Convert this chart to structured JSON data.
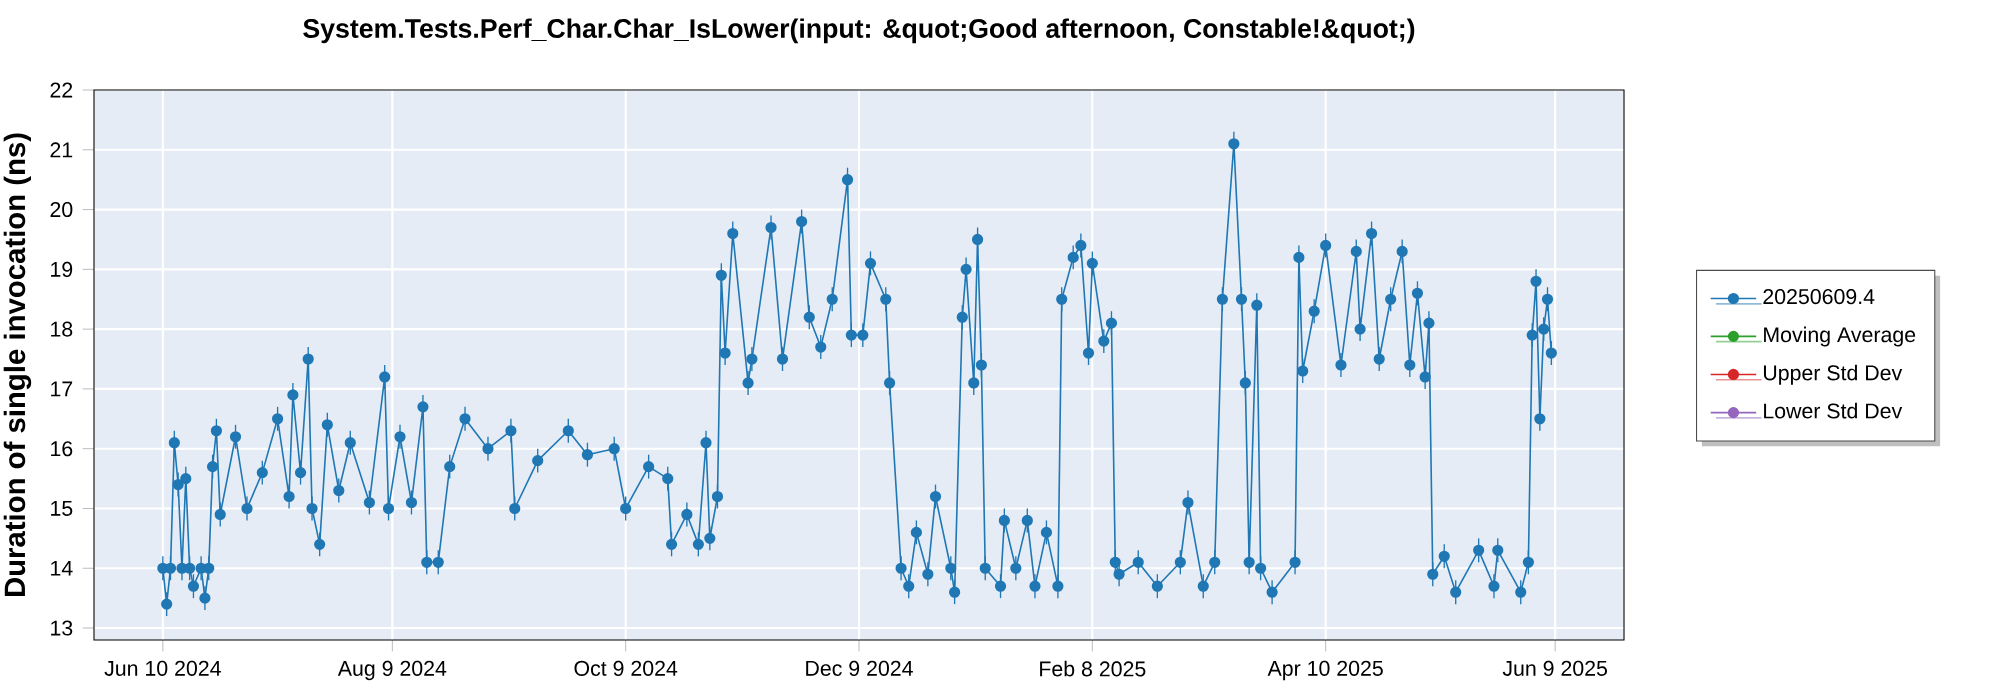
{
  "chart_data": {
    "type": "line",
    "title": "System.Tests.Perf_Char.Char_IsLower(input: &quot;Good afternoon, Constable!&quot;)",
    "ylabel": "Duration of single invocation (ns)",
    "xlim": [
      "2024-05-23",
      "2025-06-27"
    ],
    "xticks": [
      {
        "value": "2024-06-10",
        "label": "Jun 10 2024"
      },
      {
        "value": "2024-08-09",
        "label": "Aug 9 2024"
      },
      {
        "value": "2024-10-09",
        "label": "Oct 9 2024"
      },
      {
        "value": "2024-12-09",
        "label": "Dec 9 2024"
      },
      {
        "value": "2025-02-08",
        "label": "Feb 8 2025"
      },
      {
        "value": "2025-04-10",
        "label": "Apr 10 2025"
      },
      {
        "value": "2025-06-09",
        "label": "Jun 9 2025"
      }
    ],
    "ylim": [
      12.8,
      22
    ],
    "yticks": [
      13,
      14,
      15,
      16,
      17,
      18,
      19,
      20,
      21,
      22
    ],
    "grid": true,
    "legend": "right",
    "marker": "circle",
    "line_style": "solid",
    "series": [
      {
        "name": "20250609.4",
        "color": "#1f77b4",
        "x": [
          "2024-06-10",
          "2024-06-11",
          "2024-06-12",
          "2024-06-13",
          "2024-06-14",
          "2024-06-15",
          "2024-06-16",
          "2024-06-17",
          "2024-06-18",
          "2024-06-20",
          "2024-06-21",
          "2024-06-22",
          "2024-06-23",
          "2024-06-24",
          "2024-06-25",
          "2024-06-29",
          "2024-07-02",
          "2024-07-06",
          "2024-07-10",
          "2024-07-13",
          "2024-07-14",
          "2024-07-16",
          "2024-07-18",
          "2024-07-19",
          "2024-07-21",
          "2024-07-23",
          "2024-07-26",
          "2024-07-29",
          "2024-08-03",
          "2024-08-07",
          "2024-08-08",
          "2024-08-11",
          "2024-08-14",
          "2024-08-17",
          "2024-08-18",
          "2024-08-21",
          "2024-08-24",
          "2024-08-28",
          "2024-09-03",
          "2024-09-09",
          "2024-09-10",
          "2024-09-16",
          "2024-09-24",
          "2024-09-29",
          "2024-10-06",
          "2024-10-09",
          "2024-10-15",
          "2024-10-20",
          "2024-10-21",
          "2024-10-25",
          "2024-10-28",
          "2024-10-30",
          "2024-10-31",
          "2024-11-02",
          "2024-11-03",
          "2024-11-04",
          "2024-11-06",
          "2024-11-10",
          "2024-11-11",
          "2024-11-16",
          "2024-11-19",
          "2024-11-24",
          "2024-11-26",
          "2024-11-29",
          "2024-12-02",
          "2024-12-06",
          "2024-12-07",
          "2024-12-10",
          "2024-12-12",
          "2024-12-16",
          "2024-12-17",
          "2024-12-20",
          "2024-12-22",
          "2024-12-24",
          "2024-12-27",
          "2024-12-29",
          "2025-01-02",
          "2025-01-03",
          "2025-01-05",
          "2025-01-06",
          "2025-01-08",
          "2025-01-09",
          "2025-01-10",
          "2025-01-11",
          "2025-01-15",
          "2025-01-16",
          "2025-01-19",
          "2025-01-22",
          "2025-01-24",
          "2025-01-27",
          "2025-01-30",
          "2025-01-31",
          "2025-02-03",
          "2025-02-05",
          "2025-02-07",
          "2025-02-08",
          "2025-02-11",
          "2025-02-13",
          "2025-02-14",
          "2025-02-15",
          "2025-02-20",
          "2025-02-25",
          "2025-03-03",
          "2025-03-05",
          "2025-03-09",
          "2025-03-12",
          "2025-03-14",
          "2025-03-17",
          "2025-03-19",
          "2025-03-20",
          "2025-03-21",
          "2025-03-23",
          "2025-03-24",
          "2025-03-27",
          "2025-04-02",
          "2025-04-03",
          "2025-04-04",
          "2025-04-07",
          "2025-04-10",
          "2025-04-14",
          "2025-04-18",
          "2025-04-19",
          "2025-04-22",
          "2025-04-24",
          "2025-04-27",
          "2025-04-30",
          "2025-05-02",
          "2025-05-04",
          "2025-05-06",
          "2025-05-07",
          "2025-05-08",
          "2025-05-11",
          "2025-05-14",
          "2025-05-20",
          "2025-05-24",
          "2025-05-25",
          "2025-05-31",
          "2025-06-02",
          "2025-06-03",
          "2025-06-04",
          "2025-06-05",
          "2025-06-06",
          "2025-06-07",
          "2025-06-08"
        ],
        "values": [
          14.0,
          13.4,
          14.0,
          16.1,
          15.4,
          14.0,
          15.5,
          14.0,
          13.7,
          14.0,
          13.5,
          14.0,
          15.7,
          16.3,
          14.9,
          16.2,
          15.0,
          15.6,
          16.5,
          15.2,
          16.9,
          15.6,
          17.5,
          15.0,
          14.4,
          16.4,
          15.3,
          16.1,
          15.1,
          17.2,
          15.0,
          16.2,
          15.1,
          16.7,
          14.1,
          14.1,
          15.7,
          16.5,
          16.0,
          16.3,
          15.0,
          15.8,
          16.3,
          15.9,
          16.0,
          15.0,
          15.7,
          15.5,
          14.4,
          14.9,
          14.4,
          16.1,
          14.5,
          15.2,
          18.9,
          17.6,
          19.6,
          17.1,
          17.5,
          19.7,
          17.5,
          19.8,
          18.2,
          17.7,
          18.5,
          20.5,
          17.9,
          17.9,
          19.1,
          18.5,
          17.1,
          14.0,
          13.7,
          14.6,
          13.9,
          15.2,
          14.0,
          13.6,
          18.2,
          19.0,
          17.1,
          19.5,
          17.4,
          14.0,
          13.7,
          14.8,
          14.0,
          14.8,
          13.7,
          14.6,
          13.7,
          18.5,
          19.2,
          19.4,
          17.6,
          19.1,
          17.8,
          18.1,
          14.1,
          13.9,
          14.1,
          13.7,
          14.1,
          15.1,
          13.7,
          14.1,
          18.5,
          21.1,
          18.5,
          17.1,
          14.1,
          18.4,
          14.0,
          13.6,
          14.1,
          19.2,
          17.3,
          18.3,
          19.4,
          17.4,
          19.3,
          18.0,
          19.6,
          17.5,
          18.5,
          19.3,
          17.4,
          18.6,
          17.2,
          18.1,
          13.9,
          14.2,
          13.6,
          14.3,
          13.7,
          14.3,
          13.6,
          14.1,
          17.9,
          18.8,
          16.5,
          18.0,
          18.5,
          17.6
        ],
        "errors": [
          0.2,
          0.2,
          0.2,
          0.2,
          0.2,
          0.2,
          0.2,
          0.2,
          0.2,
          0.2,
          0.2,
          0.2,
          0.2,
          0.2,
          0.2,
          0.2,
          0.2,
          0.2,
          0.2,
          0.2,
          0.2,
          0.2,
          0.2,
          0.2,
          0.2,
          0.2,
          0.2,
          0.2,
          0.2,
          0.2,
          0.2,
          0.2,
          0.2,
          0.2,
          0.2,
          0.2,
          0.2,
          0.2,
          0.2,
          0.2,
          0.2,
          0.2,
          0.2,
          0.2,
          0.2,
          0.2,
          0.2,
          0.2,
          0.2,
          0.2,
          0.2,
          0.2,
          0.2,
          0.2,
          0.2,
          0.2,
          0.2,
          0.2,
          0.2,
          0.2,
          0.2,
          0.2,
          0.2,
          0.2,
          0.2,
          0.2,
          0.2,
          0.2,
          0.2,
          0.2,
          0.2,
          0.2,
          0.2,
          0.2,
          0.2,
          0.2,
          0.2,
          0.2,
          0.2,
          0.2,
          0.2,
          0.2,
          0.2,
          0.2,
          0.2,
          0.2,
          0.2,
          0.2,
          0.2,
          0.2,
          0.2,
          0.2,
          0.2,
          0.2,
          0.2,
          0.2,
          0.2,
          0.2,
          0.2,
          0.2,
          0.2,
          0.2,
          0.2,
          0.2,
          0.2,
          0.2,
          0.2,
          0.2,
          0.2,
          0.2,
          0.2,
          0.2,
          0.2,
          0.2,
          0.2,
          0.2,
          0.2,
          0.2,
          0.2,
          0.2,
          0.2,
          0.2,
          0.2,
          0.2,
          0.2,
          0.2,
          0.2,
          0.2,
          0.2,
          0.2,
          0.2,
          0.2,
          0.2,
          0.2,
          0.2,
          0.2,
          0.2,
          0.2,
          0.2,
          0.2,
          0.2,
          0.2,
          0.2,
          0.2
        ]
      },
      {
        "name": "Moving Average",
        "color": "#2ca02c"
      },
      {
        "name": "Upper Std Dev",
        "color": "#d62728"
      },
      {
        "name": "Lower Std Dev",
        "color": "#9467bd"
      }
    ]
  }
}
